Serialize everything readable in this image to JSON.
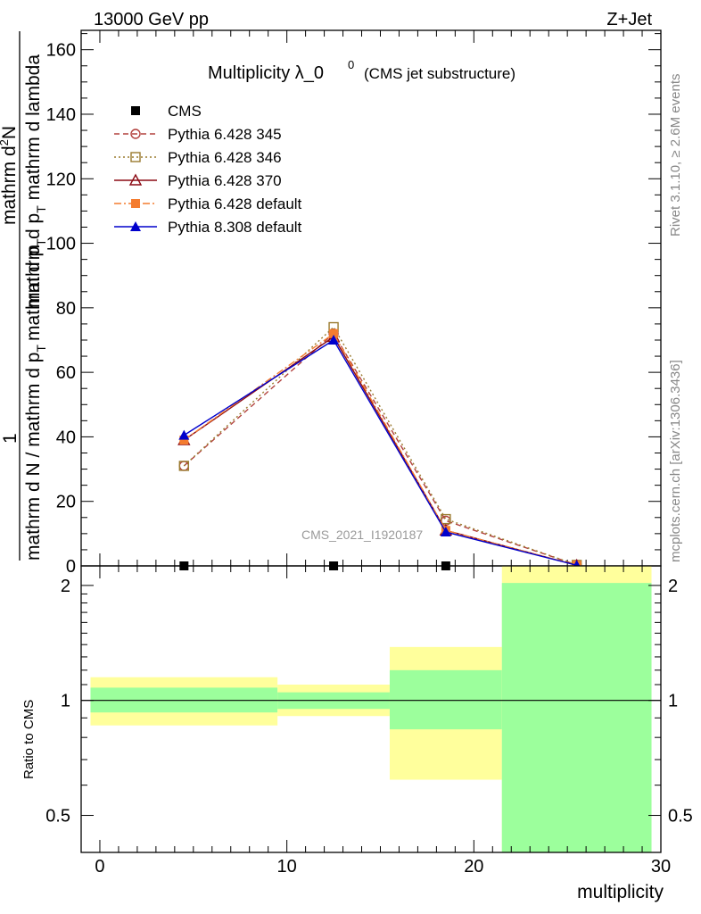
{
  "header": {
    "energy_label": "13000 GeV pp",
    "process_label": "Z+Jet",
    "title_main": "Multiplicity λ_0",
    "title_sup": "0",
    "title_sub": "(CMS jet substructure)",
    "watermark": "CMS_2021_I1920187",
    "side_label_top": "Rivet 3.1.10, ≥ 2.6M events",
    "side_label_bottom": "mcplots.cern.ch [arXiv:1306.3436]"
  },
  "colors": {
    "cms": "#000000",
    "p345": "#b2413d",
    "p346": "#9a7b2f",
    "p370": "#8b0a14",
    "p6def": "#f47c2f",
    "p8def": "#0000cc",
    "band_inner": "#9cff9c",
    "band_outer": "#ffff9c"
  },
  "chart_data": [
    {
      "type": "line",
      "title": "Multiplicity λ_0^0 (CMS jet substructure)",
      "ylabel": "1 / mathrm d N / mathrm d p_T mathrm d p_T mathrm d lambda  mathrm d^2N",
      "ylabel_parts": {
        "one": "1",
        "numerator": "mathrm d",
        "numerator_sup": "2",
        "numerator_tail": "N",
        "denominator_top_a": "mathrm d p",
        "denominator_top_sub": "T",
        "denominator_top_b": " mathrm d lambda",
        "denominator_bottom_a": "mathrm d N / mathrm d p",
        "denominator_bottom_sub": "T",
        "denominator_bottom_b": "mathrm d p",
        "denominator_bottom_sub2": "T"
      },
      "xlim": [
        -1,
        30
      ],
      "ylim": [
        0,
        166
      ],
      "yticks": [
        0,
        20,
        40,
        60,
        80,
        100,
        120,
        140,
        160
      ],
      "legend_position": "top-left",
      "series": [
        {
          "name": "CMS",
          "marker": "square-filled",
          "x": [
            4.5,
            12.5,
            18.5,
            25.5
          ],
          "y": [
            0,
            0,
            0,
            0
          ]
        },
        {
          "name": "Pythia 6.428 345",
          "marker": "circle-open",
          "dash": "dashed",
          "x": [
            4.5,
            12.5,
            18.5,
            25.5
          ],
          "y": [
            31,
            72,
            14,
            0.3
          ]
        },
        {
          "name": "Pythia 6.428 346",
          "marker": "square-open",
          "dash": "dotted",
          "x": [
            4.5,
            12.5,
            18.5,
            25.5
          ],
          "y": [
            31,
            74,
            14.5,
            0.3
          ]
        },
        {
          "name": "Pythia 6.428 370",
          "marker": "triangle-open",
          "dash": "solid",
          "x": [
            4.5,
            12.5,
            18.5,
            25.5
          ],
          "y": [
            39,
            71,
            11,
            0.2
          ]
        },
        {
          "name": "Pythia 6.428 default",
          "marker": "square-filled",
          "dash": "dashdot",
          "x": [
            4.5,
            12.5,
            18.5,
            25.5
          ],
          "y": [
            39,
            72,
            11,
            0.2
          ]
        },
        {
          "name": "Pythia 8.308 default",
          "marker": "triangle-filled",
          "dash": "solid",
          "x": [
            4.5,
            12.5,
            18.5,
            25.5
          ],
          "y": [
            40.5,
            70,
            10.5,
            0.2
          ]
        }
      ]
    },
    {
      "type": "area",
      "ylabel": "Ratio to CMS",
      "xlabel": "multiplicity",
      "xlim": [
        -1,
        30
      ],
      "ylim": [
        0.4,
        2.25
      ],
      "yscale": "log",
      "yticks": [
        0.5,
        1,
        2
      ],
      "xticks": [
        0,
        10,
        20,
        30
      ],
      "reference_line": 1,
      "bands": [
        {
          "x0": -0.5,
          "x1": 9.5,
          "inner": [
            0.93,
            1.08
          ],
          "outer": [
            0.86,
            1.15
          ]
        },
        {
          "x0": 9.5,
          "x1": 15.5,
          "inner": [
            0.95,
            1.05
          ],
          "outer": [
            0.91,
            1.1
          ]
        },
        {
          "x0": 15.5,
          "x1": 21.5,
          "inner": [
            0.84,
            1.2
          ],
          "outer": [
            0.62,
            1.38
          ]
        },
        {
          "x0": 21.5,
          "x1": 29.5,
          "inner": [
            0.4,
            2.03
          ],
          "outer": [
            0.4,
            2.25
          ]
        }
      ]
    }
  ]
}
